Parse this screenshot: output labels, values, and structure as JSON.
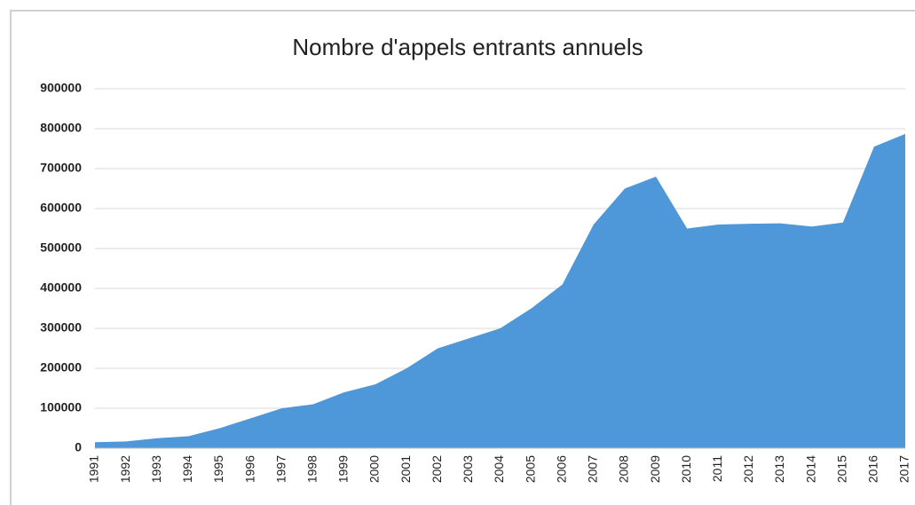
{
  "chart_data": {
    "type": "area",
    "title": "Nombre d'appels entrants annuels",
    "categories": [
      "1991",
      "1992",
      "1993",
      "1994",
      "1995",
      "1996",
      "1997",
      "1998",
      "1999",
      "2000",
      "2001",
      "2002",
      "2003",
      "2004",
      "2005",
      "2006",
      "2007",
      "2008",
      "2009",
      "2010",
      "2011",
      "2012",
      "2013",
      "2014",
      "2015",
      "2016",
      "2017"
    ],
    "values": [
      15000,
      17000,
      25000,
      30000,
      50000,
      75000,
      100000,
      110000,
      140000,
      160000,
      200000,
      250000,
      275000,
      300000,
      350000,
      410000,
      560000,
      650000,
      680000,
      550000,
      560000,
      562000,
      563000,
      555000,
      565000,
      755000,
      787000
    ],
    "color": "#4e97d8",
    "ylim": [
      0,
      900000
    ],
    "yticks": [
      0,
      100000,
      200000,
      300000,
      400000,
      500000,
      600000,
      700000,
      800000,
      900000
    ],
    "grid": true
  }
}
